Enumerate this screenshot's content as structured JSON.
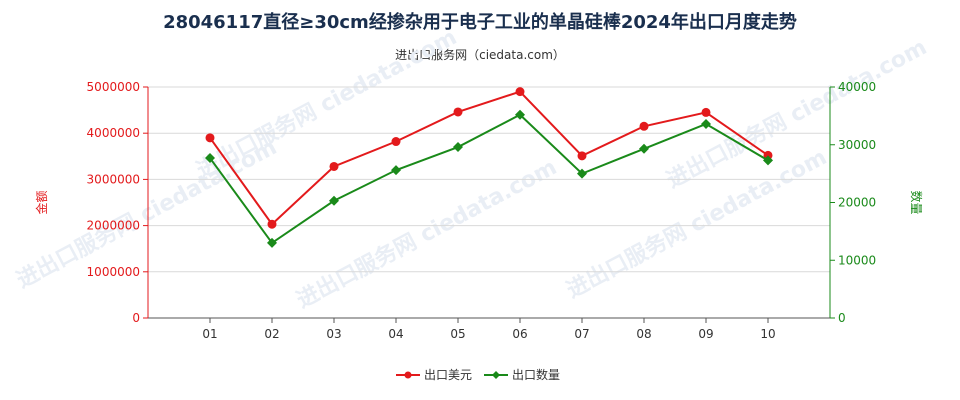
{
  "title": "28046117直径≥30cm经掺杂用于电子工业的单晶硅棒2024年出口月度走势",
  "subtitle": "进出口服务网（ciedata.com）",
  "watermark": "进出口服务网 ciedata.com",
  "colors": {
    "left_axis": "#e31a1c",
    "right_axis": "#1a8a1a",
    "amount": "#e31a1c",
    "quantity": "#1a8a1a"
  },
  "chart_data": {
    "type": "line",
    "categories": [
      "01",
      "02",
      "03",
      "04",
      "05",
      "06",
      "07",
      "08",
      "09",
      "10"
    ],
    "ylabel_left": "金额",
    "ylabel_right": "数量",
    "ylim_left": [
      0,
      5000000
    ],
    "ylim_right": [
      0,
      40000
    ],
    "yticks_left": [
      "0",
      "1000000",
      "2000000",
      "3000000",
      "4000000",
      "5000000"
    ],
    "yticks_right": [
      "0",
      "10000",
      "20000",
      "30000",
      "40000"
    ],
    "legend_position": "bottom-center",
    "grid": true,
    "series": [
      {
        "name": "出口美元",
        "axis": "left",
        "color": "#e31a1c",
        "values": [
          3900000,
          2030000,
          3280000,
          3820000,
          4460000,
          4900000,
          3510000,
          4150000,
          4450000,
          3520000
        ]
      },
      {
        "name": "出口数量",
        "axis": "right",
        "color": "#1a8a1a",
        "values": [
          27700,
          13000,
          20300,
          25600,
          29600,
          35200,
          25000,
          29300,
          33600,
          27300
        ]
      }
    ]
  }
}
